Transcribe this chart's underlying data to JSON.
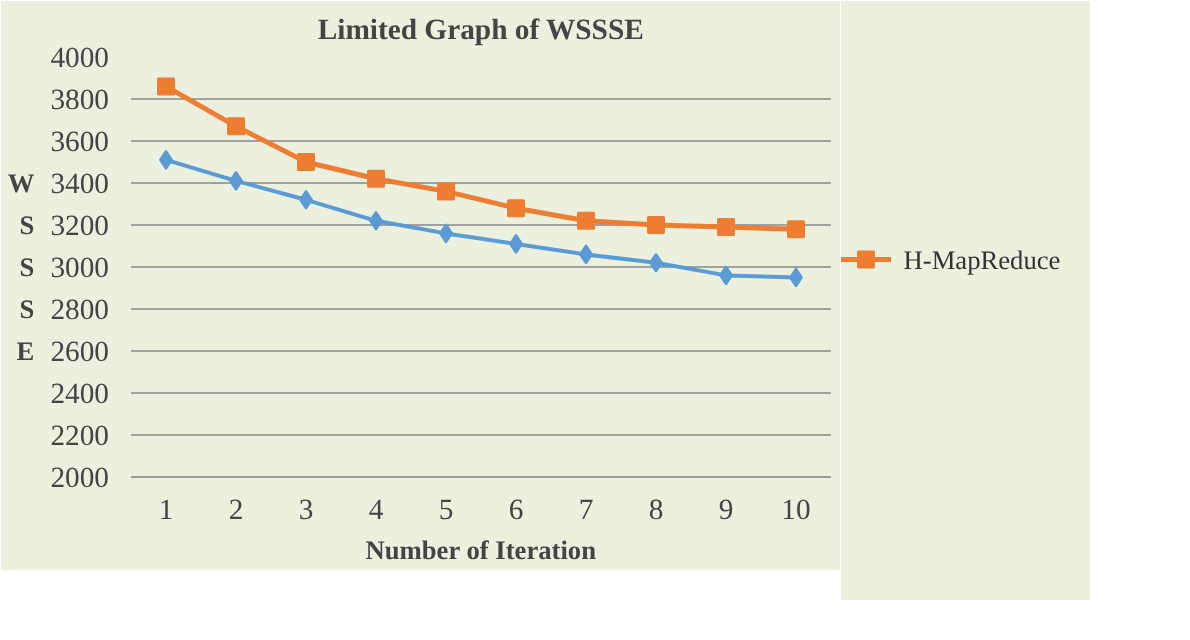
{
  "chart_data": {
    "type": "line",
    "title": "Limited Graph of WSSSE",
    "xlabel": "Number of Iteration",
    "ylabel": "WSSSE",
    "categories": [
      "1",
      "2",
      "3",
      "4",
      "5",
      "6",
      "7",
      "8",
      "9",
      "10"
    ],
    "series": [
      {
        "name": "H-MapReduce",
        "color": "#ed7d31",
        "marker": "square",
        "values": [
          3860,
          3670,
          3500,
          3420,
          3360,
          3280,
          3220,
          3200,
          3190,
          3180
        ]
      },
      {
        "color": "#5b9bd5",
        "marker": "diamond",
        "values": [
          3510,
          3410,
          3320,
          3220,
          3160,
          3110,
          3060,
          3020,
          2960,
          2950
        ]
      }
    ],
    "ylim": [
      2000,
      4000
    ],
    "yticks": [
      2000,
      2200,
      2400,
      2600,
      2800,
      3000,
      3200,
      3400,
      3600,
      3800,
      4000
    ],
    "grid": "y",
    "legend": "right",
    "line_style": "solid"
  }
}
